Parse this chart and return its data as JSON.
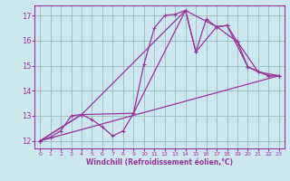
{
  "xlabel": "Windchill (Refroidissement éolien,°C)",
  "bg_color": "#cce8ee",
  "line_color": "#993399",
  "grid_color": "#99bbbb",
  "xlim": [
    -0.5,
    23.5
  ],
  "ylim": [
    11.7,
    17.4
  ],
  "xticks": [
    0,
    1,
    2,
    3,
    4,
    5,
    6,
    7,
    8,
    9,
    10,
    11,
    12,
    13,
    14,
    15,
    16,
    17,
    18,
    19,
    20,
    21,
    22,
    23
  ],
  "yticks": [
    12,
    13,
    14,
    15,
    16,
    17
  ],
  "series": [
    {
      "x": [
        0,
        1,
        2,
        3,
        4,
        5,
        6,
        7,
        8,
        9,
        10,
        11,
        12,
        13,
        14,
        15,
        16,
        17,
        18,
        19,
        20,
        21,
        22,
        23
      ],
      "y": [
        12.0,
        12.15,
        12.4,
        13.0,
        13.05,
        12.85,
        12.55,
        12.2,
        12.4,
        13.1,
        15.05,
        16.5,
        17.0,
        17.05,
        17.2,
        15.55,
        16.85,
        16.55,
        16.6,
        15.95,
        14.95,
        14.75,
        14.6,
        14.6
      ]
    },
    {
      "x": [
        0,
        4,
        14,
        15,
        17,
        18,
        20,
        22,
        23
      ],
      "y": [
        12.0,
        13.05,
        17.2,
        15.55,
        16.55,
        16.6,
        14.95,
        14.6,
        14.6
      ]
    },
    {
      "x": [
        0,
        23
      ],
      "y": [
        12.0,
        14.6
      ]
    },
    {
      "x": [
        0,
        4,
        9,
        14,
        17,
        19,
        21,
        23
      ],
      "y": [
        12.0,
        13.05,
        13.1,
        17.2,
        16.55,
        15.95,
        14.75,
        14.6
      ]
    }
  ]
}
